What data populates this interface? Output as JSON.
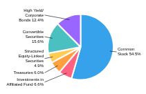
{
  "chart_data": {
    "type": "pie",
    "categories": [
      "Common\nStock 54.5%",
      "Investments in\nAffiliated Fund 6.6%",
      "Treasuries 6.0%",
      "Structured\nEquity-Linked\nSecurities\n4.9%",
      "Convertible\nSecurities\n15.6%",
      "High Yield/\nCorporate\nBonds 12.4%"
    ],
    "values": [
      54.5,
      6.6,
      6.0,
      4.9,
      15.6,
      12.4
    ]
  }
}
